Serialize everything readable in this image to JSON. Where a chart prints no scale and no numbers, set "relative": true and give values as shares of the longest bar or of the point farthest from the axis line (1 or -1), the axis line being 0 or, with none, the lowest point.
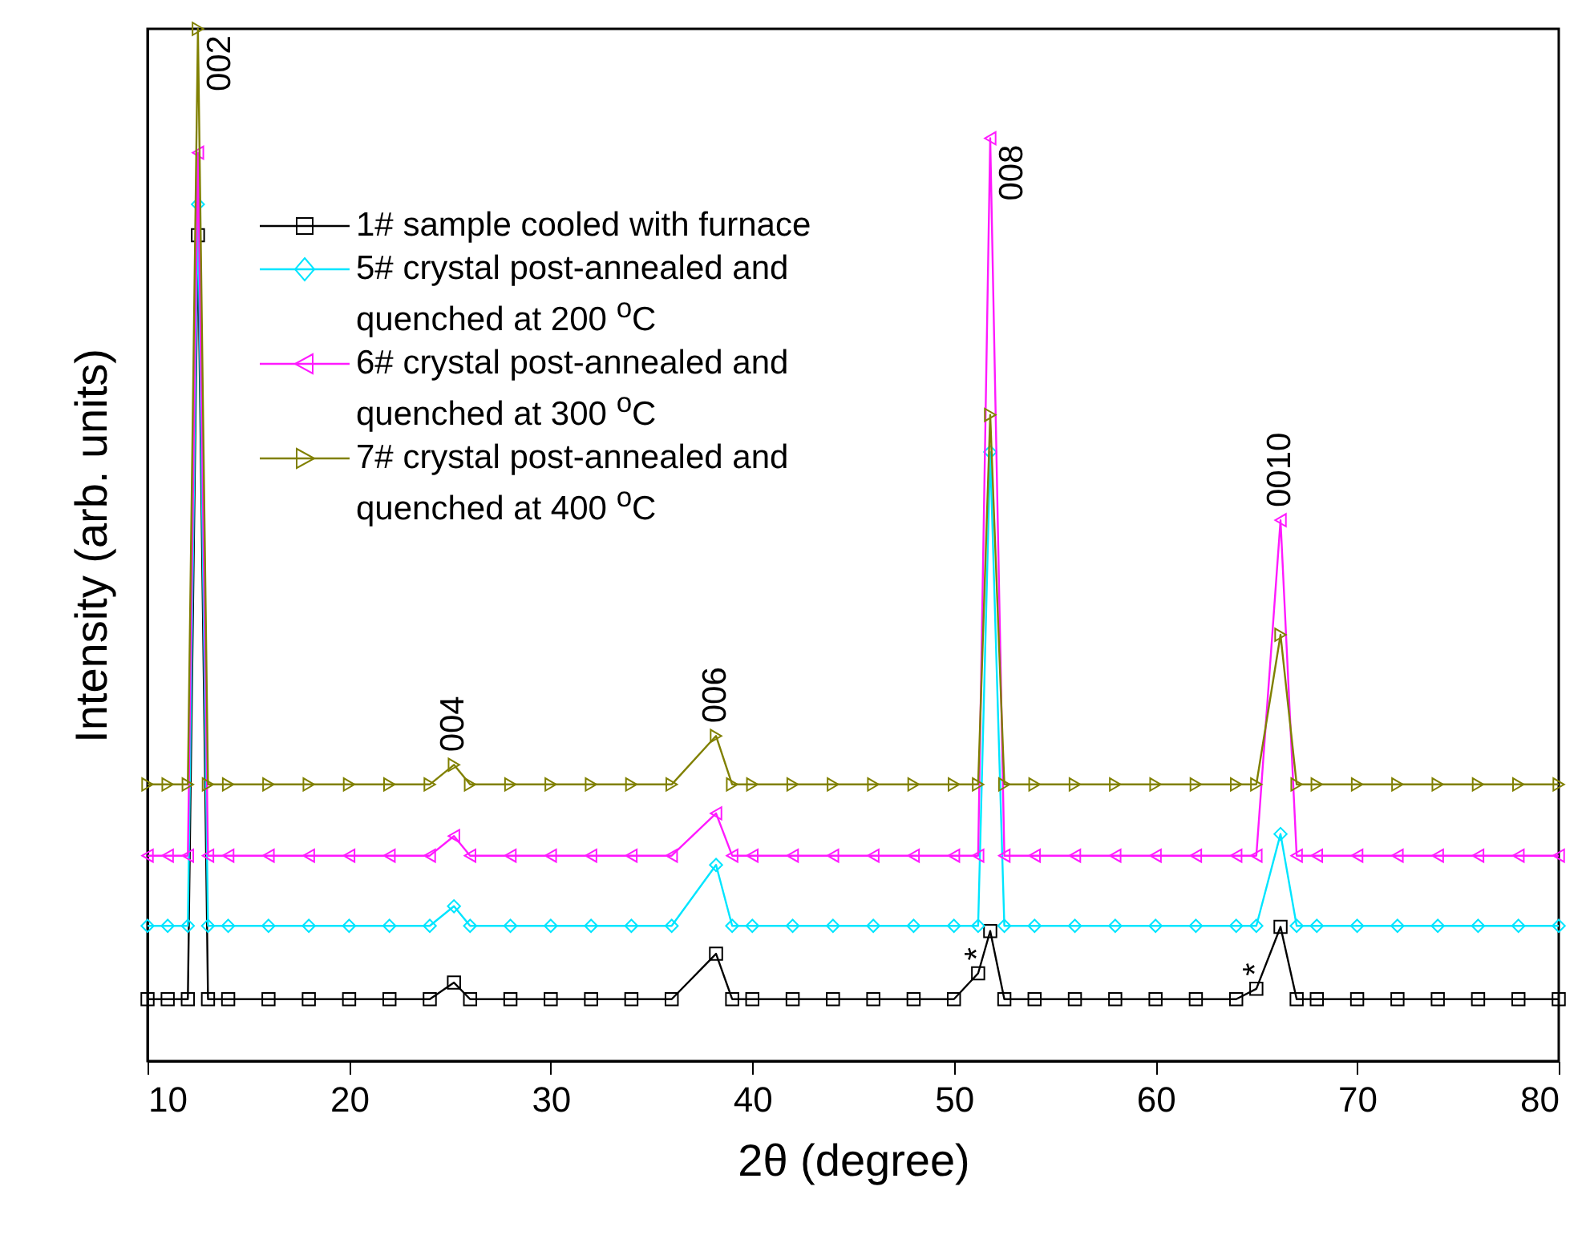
{
  "chart_data": {
    "type": "line",
    "relative": true,
    "xlabel": "2θ (degree)",
    "ylabel": "Intensity (arb. units)",
    "xlim": [
      10,
      80
    ],
    "xticks": [
      10,
      20,
      30,
      40,
      50,
      60,
      70,
      80
    ],
    "legend": "top left",
    "line_style": "solid",
    "x": [
      10,
      11,
      12,
      12.5,
      13,
      14,
      16,
      18,
      20,
      22,
      24,
      25.2,
      26,
      28,
      30,
      32,
      34,
      36,
      38.2,
      39,
      40,
      42,
      44,
      46,
      48,
      50,
      51.2,
      51.8,
      52.5,
      54,
      56,
      58,
      60,
      62,
      64,
      65,
      66.2,
      67,
      68,
      70,
      72,
      74,
      76,
      78,
      80
    ],
    "series": [
      {
        "name": "1# sample cooled with furnace",
        "color": "#000000",
        "marker": "square",
        "values": [
          0.06,
          0.06,
          0.06,
          0.8,
          0.06,
          0.06,
          0.06,
          0.06,
          0.06,
          0.06,
          0.06,
          0.076,
          0.06,
          0.06,
          0.06,
          0.06,
          0.06,
          0.06,
          0.104,
          0.06,
          0.06,
          0.06,
          0.06,
          0.06,
          0.06,
          0.06,
          0.085,
          0.126,
          0.06,
          0.06,
          0.06,
          0.06,
          0.06,
          0.06,
          0.06,
          0.07,
          0.13,
          0.06,
          0.06,
          0.06,
          0.06,
          0.06,
          0.06,
          0.06,
          0.06
        ]
      },
      {
        "name": "5# crystal post-annealed and quenched at 200 $^{o}$C",
        "color": "#00e5ff",
        "marker": "diamond",
        "values": [
          0.131,
          0.131,
          0.131,
          0.83,
          0.131,
          0.131,
          0.131,
          0.131,
          0.131,
          0.131,
          0.131,
          0.15,
          0.131,
          0.131,
          0.131,
          0.131,
          0.131,
          0.131,
          0.19,
          0.131,
          0.131,
          0.131,
          0.131,
          0.131,
          0.131,
          0.131,
          0.131,
          0.59,
          0.131,
          0.131,
          0.131,
          0.131,
          0.131,
          0.131,
          0.131,
          0.131,
          0.22,
          0.131,
          0.131,
          0.131,
          0.131,
          0.131,
          0.131,
          0.131,
          0.131
        ]
      },
      {
        "name": "6# crystal post-annealed and quenched at 300 $^{o}$C",
        "color": "#ff1aff",
        "marker": "triangle",
        "values": [
          0.199,
          0.199,
          0.199,
          0.88,
          0.199,
          0.199,
          0.199,
          0.199,
          0.199,
          0.199,
          0.199,
          0.218,
          0.199,
          0.199,
          0.199,
          0.199,
          0.199,
          0.199,
          0.24,
          0.199,
          0.199,
          0.199,
          0.199,
          0.199,
          0.199,
          0.199,
          0.199,
          0.894,
          0.199,
          0.199,
          0.199,
          0.199,
          0.199,
          0.199,
          0.199,
          0.199,
          0.524,
          0.199,
          0.199,
          0.199,
          0.199,
          0.199,
          0.199,
          0.199,
          0.199
        ]
      },
      {
        "name": "7# crystal post-annealed and quenched at 400 $^{o}$C",
        "color": "#808000",
        "marker": "triangle",
        "values": [
          0.268,
          0.268,
          0.268,
          1.0,
          0.268,
          0.268,
          0.268,
          0.268,
          0.268,
          0.268,
          0.268,
          0.287,
          0.268,
          0.268,
          0.268,
          0.268,
          0.268,
          0.268,
          0.315,
          0.268,
          0.268,
          0.268,
          0.268,
          0.268,
          0.268,
          0.268,
          0.268,
          0.626,
          0.268,
          0.268,
          0.268,
          0.268,
          0.268,
          0.268,
          0.268,
          0.268,
          0.413,
          0.268,
          0.268,
          0.268,
          0.268,
          0.268,
          0.268,
          0.268,
          0.268
        ]
      }
    ],
    "annotations": [
      {
        "text": "002",
        "x": 12.5,
        "y": 1.0
      },
      {
        "text": "004",
        "x": 25.2,
        "y": 0.287
      },
      {
        "text": "006",
        "x": 38.2,
        "y": 0.315
      },
      {
        "text": "008",
        "x": 51.8,
        "y": 0.894
      },
      {
        "text": "0010",
        "x": 66.2,
        "y": 0.524
      },
      {
        "text": "*",
        "x": 51.2,
        "y": 0.085
      },
      {
        "text": "*",
        "x": 65,
        "y": 0.07
      }
    ]
  }
}
